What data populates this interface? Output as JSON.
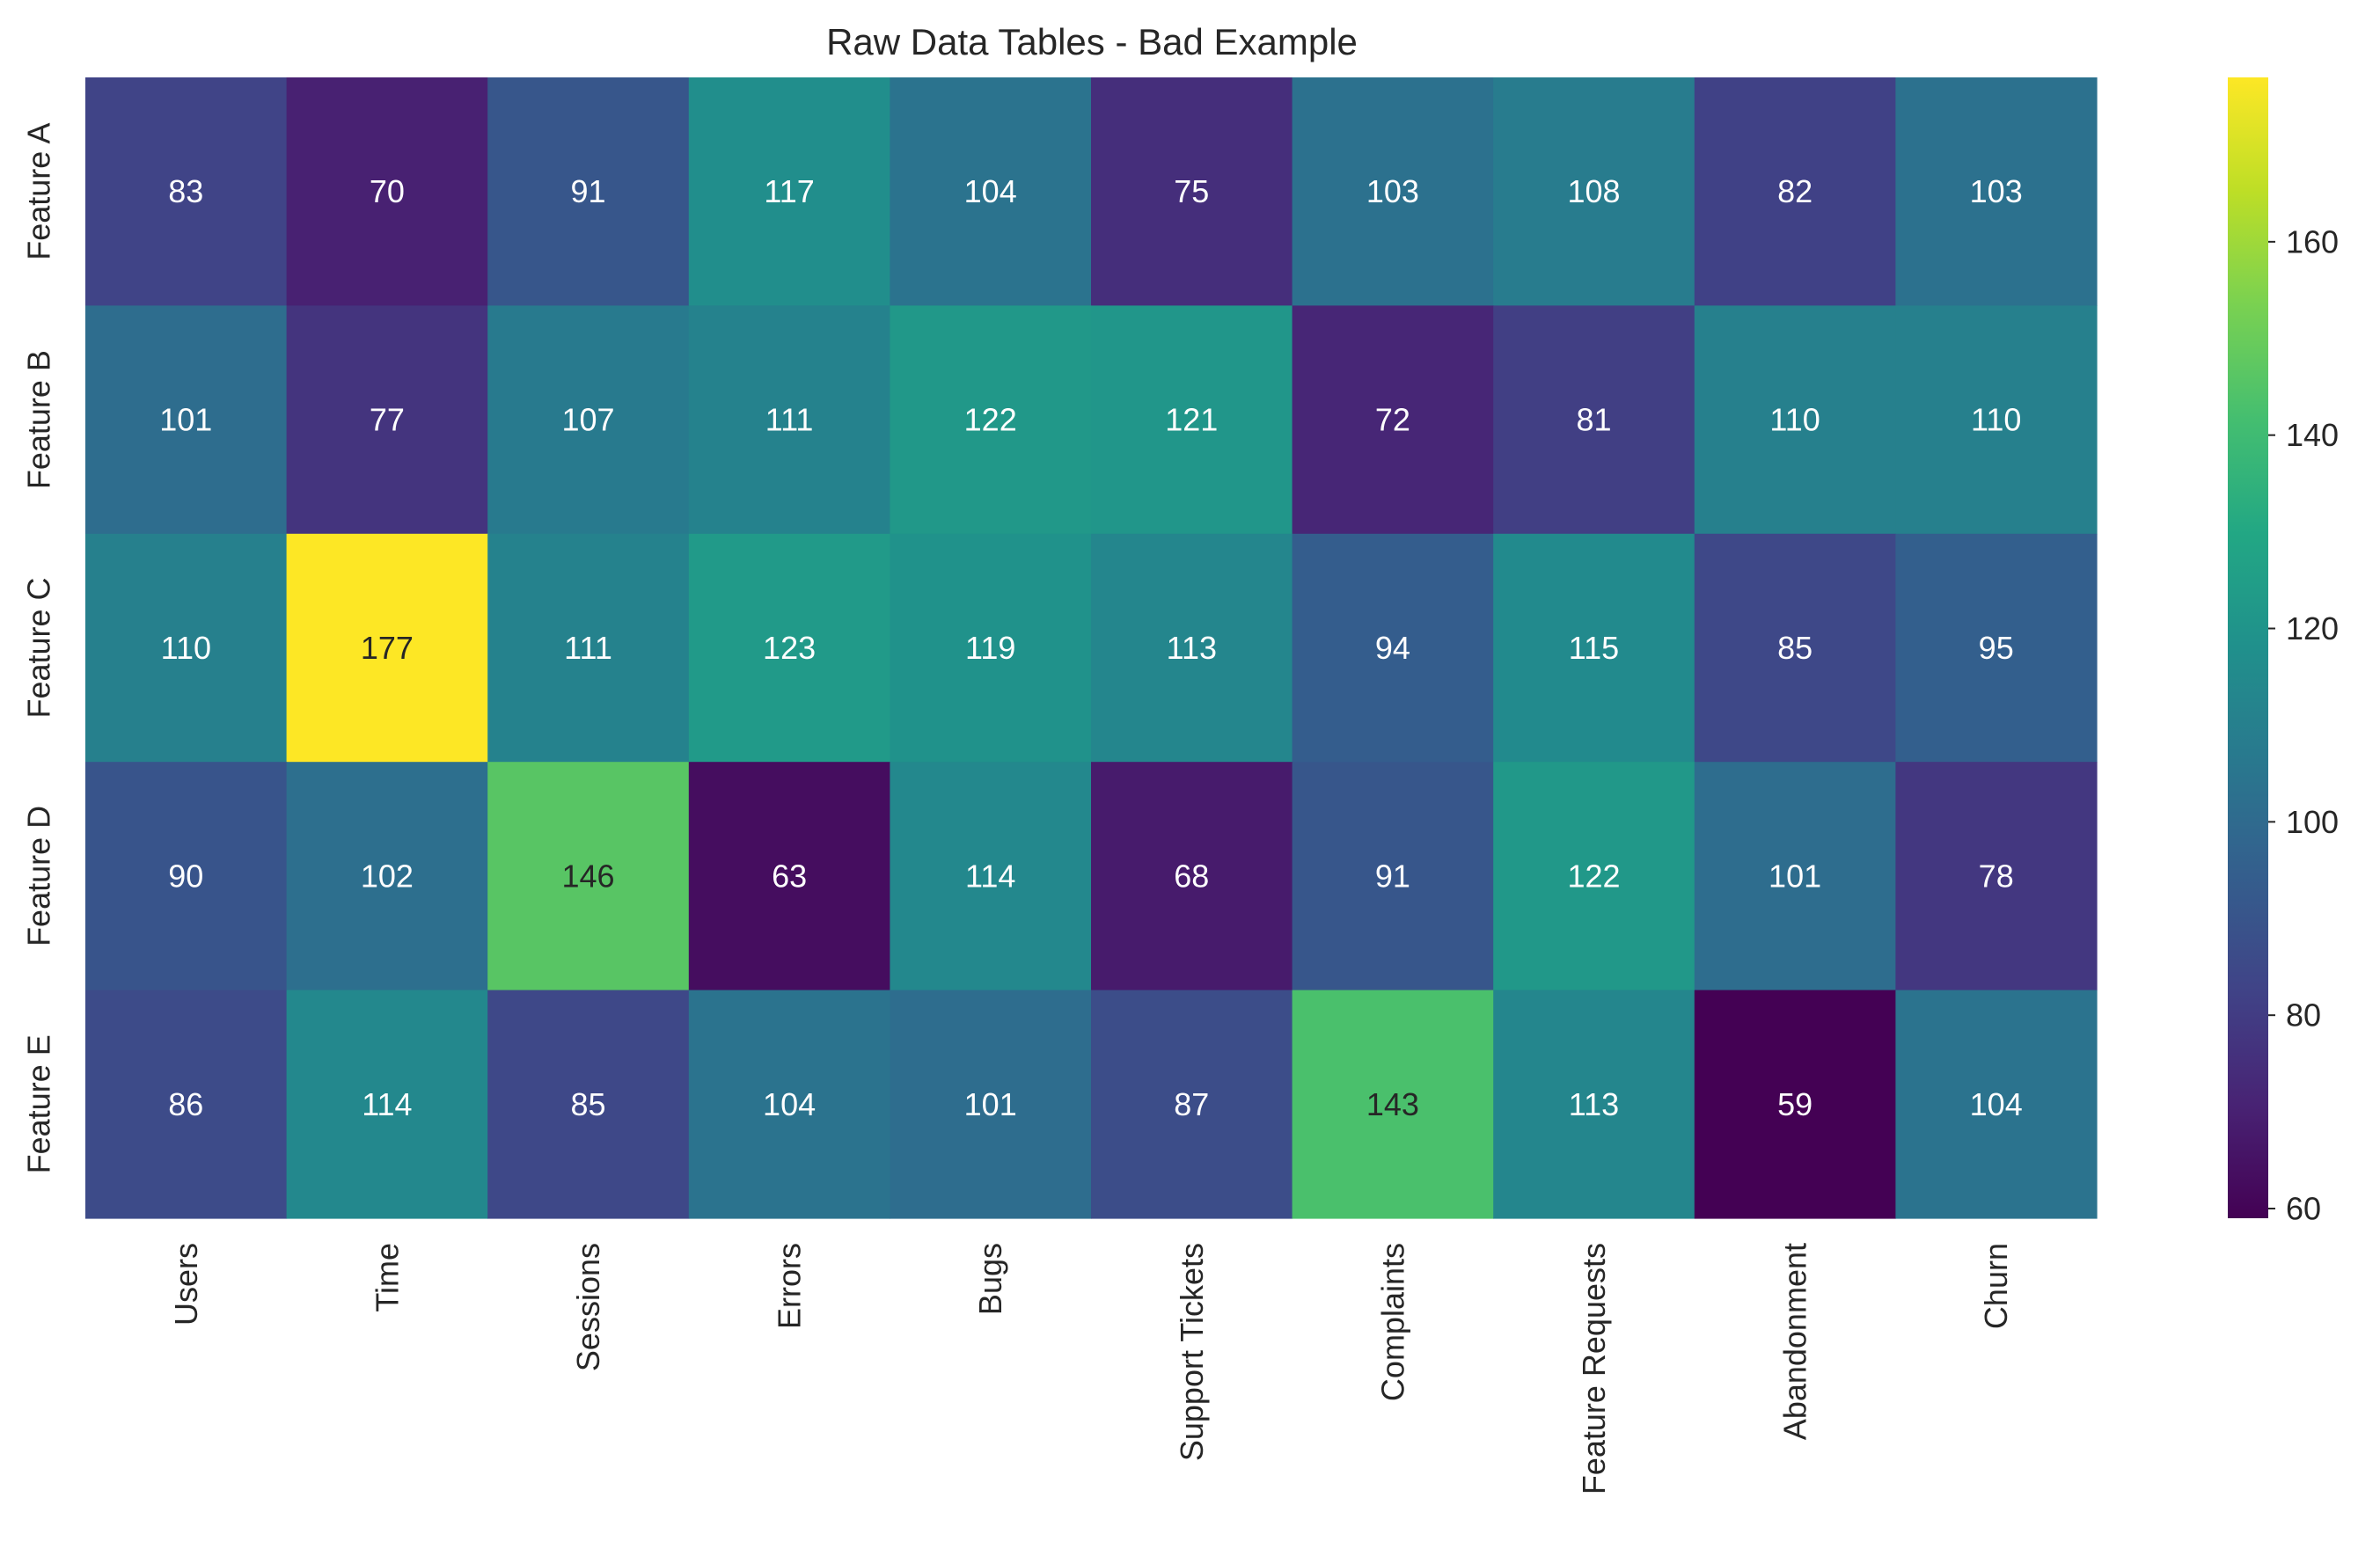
{
  "chart_data": {
    "type": "heatmap",
    "title": "Raw Data Tables - Bad Example",
    "xlabel": "",
    "ylabel": "",
    "columns": [
      "Users",
      "Time",
      "Sessions",
      "Errors",
      "Bugs",
      "Support Tickets",
      "Complaints",
      "Feature Requests",
      "Abandonment",
      "Churn"
    ],
    "rows": [
      "Feature A",
      "Feature B",
      "Feature C",
      "Feature D",
      "Feature E"
    ],
    "values": [
      [
        83,
        70,
        91,
        117,
        104,
        75,
        103,
        108,
        82,
        103
      ],
      [
        101,
        77,
        107,
        111,
        122,
        121,
        72,
        81,
        110,
        110
      ],
      [
        110,
        177,
        111,
        123,
        119,
        113,
        94,
        115,
        85,
        95
      ],
      [
        90,
        102,
        146,
        63,
        114,
        68,
        91,
        122,
        101,
        78
      ],
      [
        86,
        114,
        85,
        104,
        101,
        87,
        143,
        113,
        59,
        104
      ]
    ],
    "colormap": "viridis",
    "colorbar": {
      "vmin": 59,
      "vmax": 177,
      "ticks": [
        "60",
        "80",
        "100",
        "120",
        "140",
        "160"
      ]
    },
    "grid": false,
    "annotations": "cell values shown in each cell"
  }
}
